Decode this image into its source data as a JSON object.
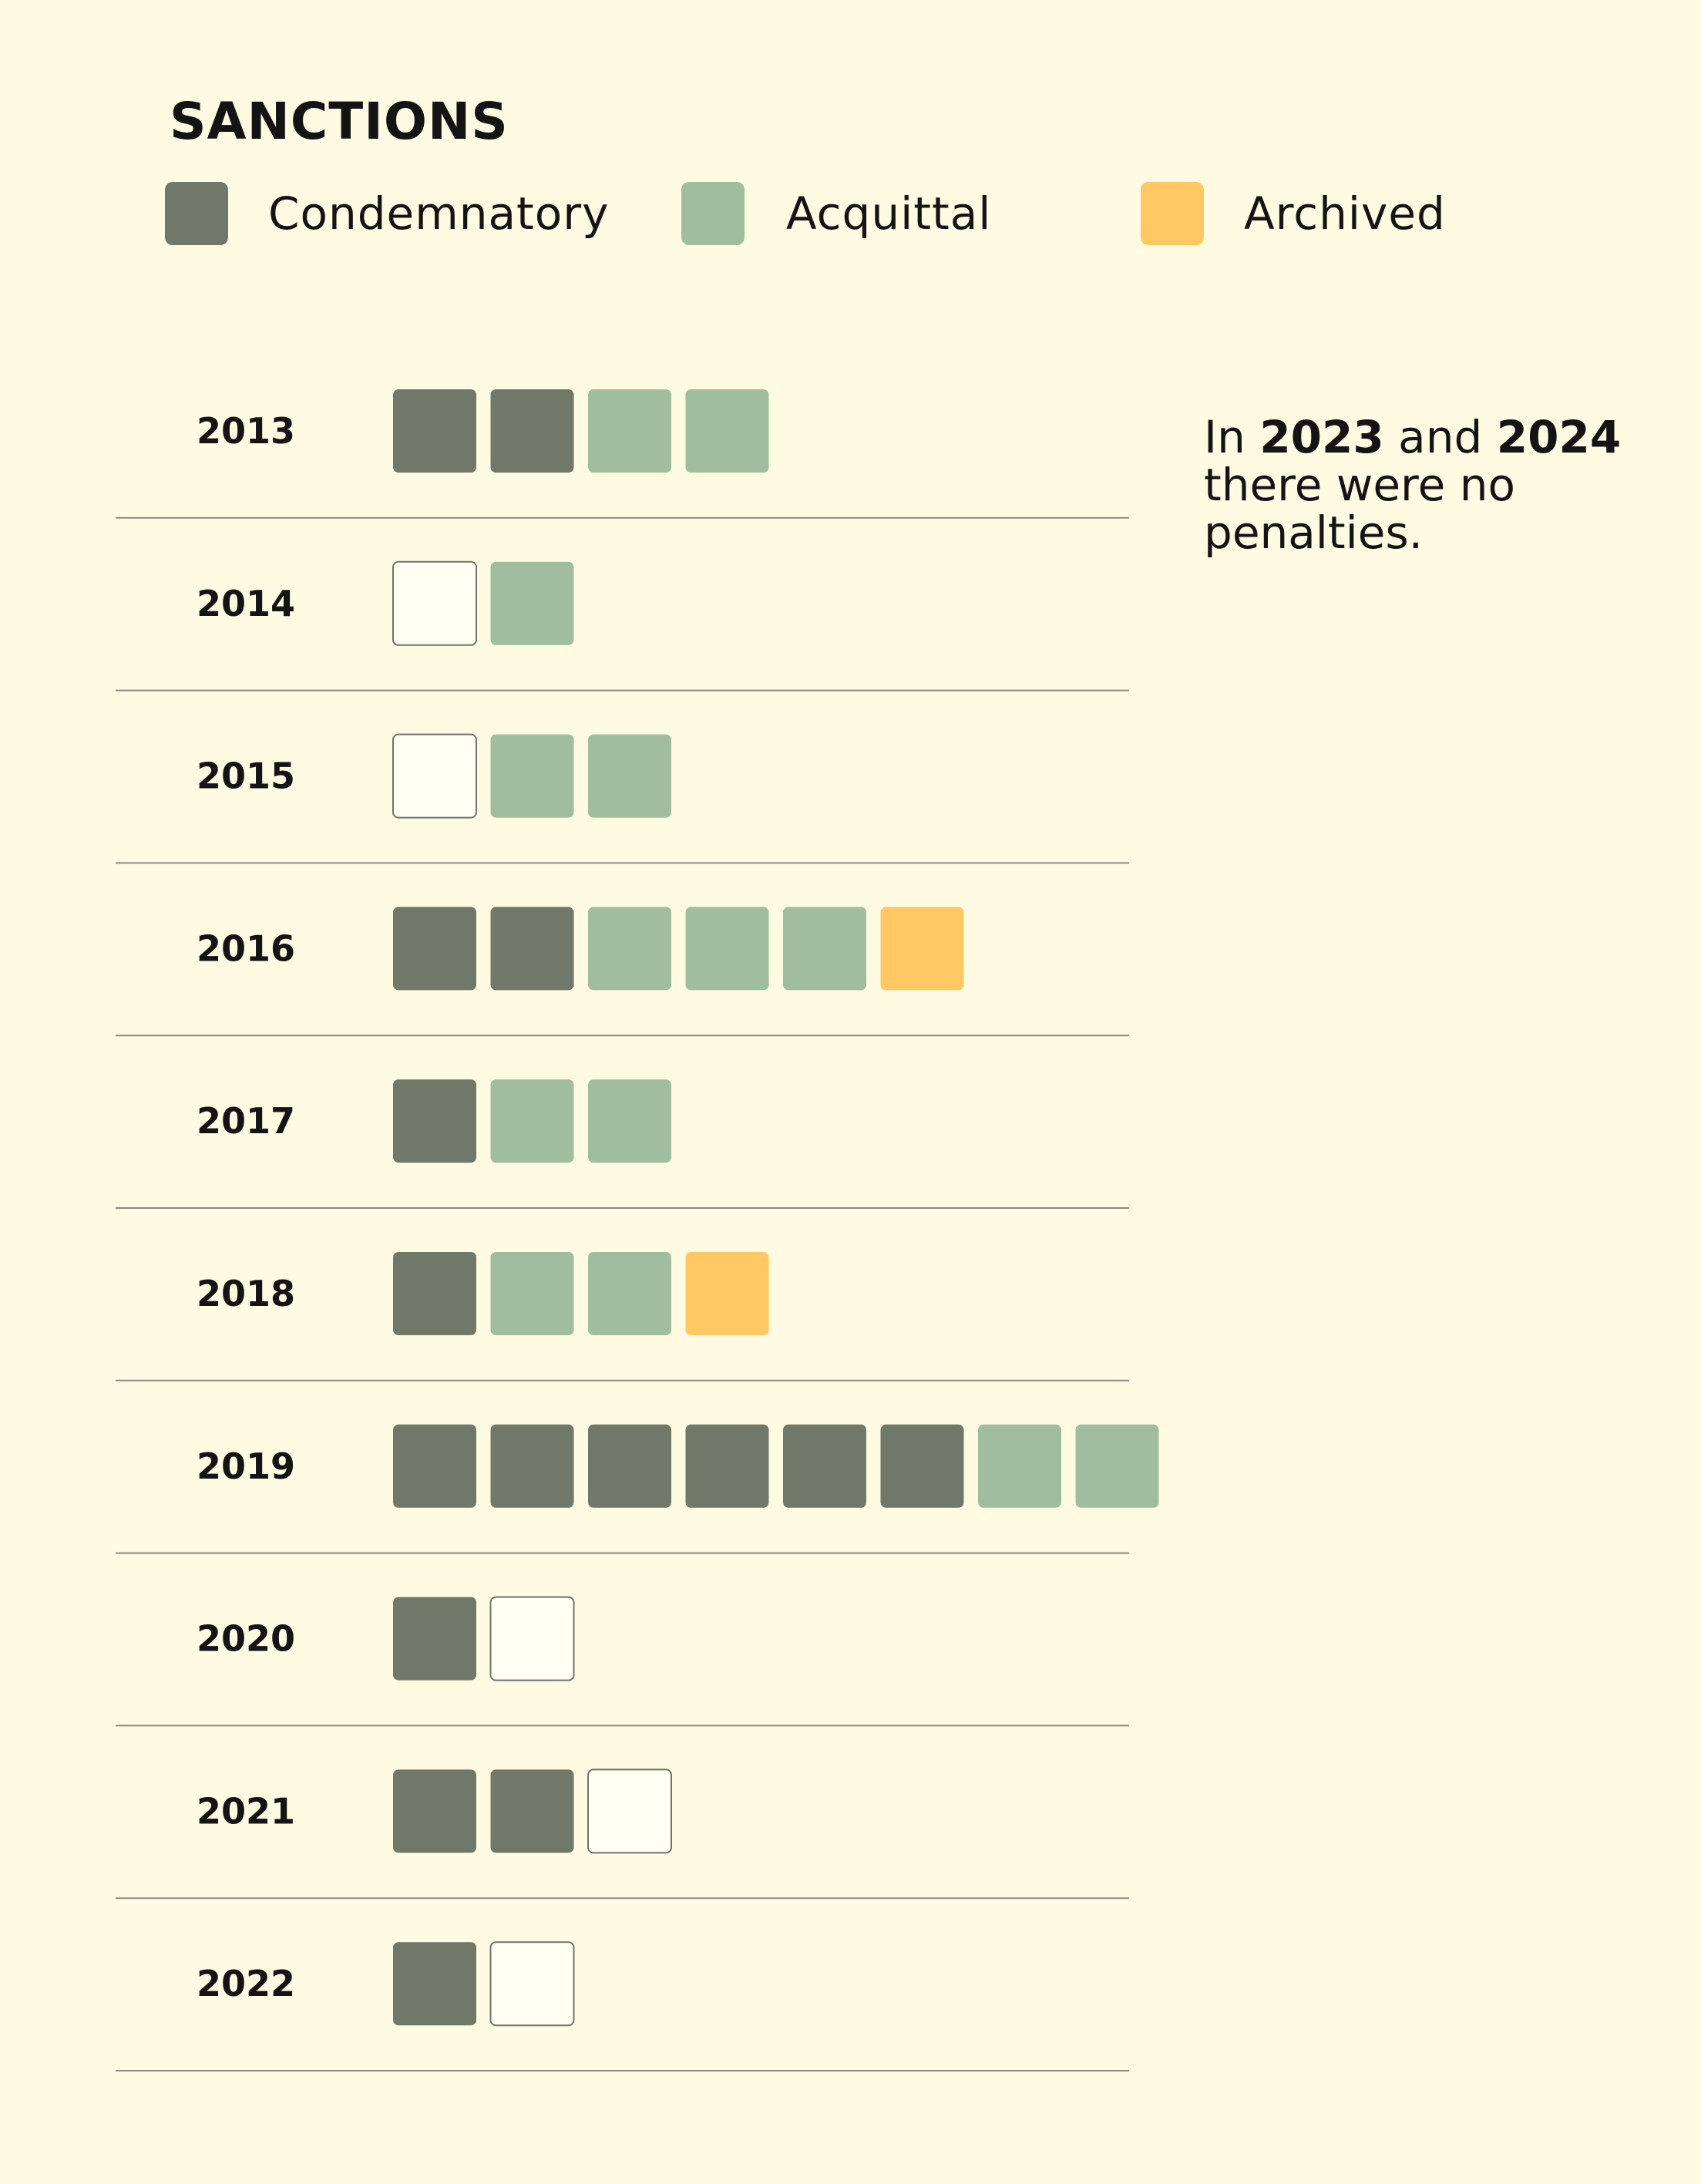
{
  "title": "SANCTIONS",
  "legend": [
    {
      "key": "condemnatory",
      "label": "Condemnatory",
      "color": "#707869"
    },
    {
      "key": "acquittal",
      "label": "Acquittal",
      "color": "#A0BE9E"
    },
    {
      "key": "archived",
      "label": "Archived",
      "color": "#FFC862"
    }
  ],
  "note": {
    "prefix": "In ",
    "year1": "2023",
    "middle": " and ",
    "year2": "2024",
    "rest": " there were no penalties."
  },
  "chart_data": {
    "type": "table",
    "title": "SANCTIONS",
    "unit_outline_color": "#707070",
    "rows": [
      {
        "year": "2013",
        "units": [
          "condemnatory",
          "condemnatory",
          "acquittal",
          "acquittal"
        ]
      },
      {
        "year": "2014",
        "units": [
          "empty",
          "acquittal"
        ]
      },
      {
        "year": "2015",
        "units": [
          "empty",
          "acquittal",
          "acquittal"
        ]
      },
      {
        "year": "2016",
        "units": [
          "condemnatory",
          "condemnatory",
          "acquittal",
          "acquittal",
          "acquittal",
          "archived"
        ]
      },
      {
        "year": "2017",
        "units": [
          "condemnatory",
          "acquittal",
          "acquittal"
        ]
      },
      {
        "year": "2018",
        "units": [
          "condemnatory",
          "acquittal",
          "acquittal",
          "archived"
        ]
      },
      {
        "year": "2019",
        "units": [
          "condemnatory",
          "condemnatory",
          "condemnatory",
          "condemnatory",
          "condemnatory",
          "condemnatory",
          "acquittal",
          "acquittal"
        ]
      },
      {
        "year": "2020",
        "units": [
          "condemnatory",
          "empty"
        ]
      },
      {
        "year": "2021",
        "units": [
          "condemnatory",
          "condemnatory",
          "empty"
        ]
      },
      {
        "year": "2022",
        "units": [
          "condemnatory",
          "empty"
        ]
      }
    ]
  }
}
